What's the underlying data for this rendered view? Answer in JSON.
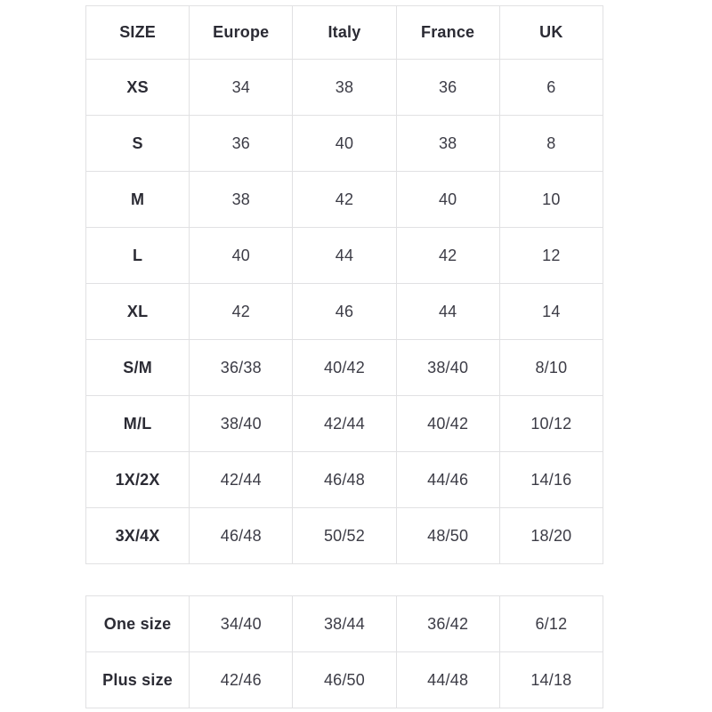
{
  "main_table": {
    "headers": [
      "SIZE",
      "Europe",
      "Italy",
      "France",
      "UK"
    ],
    "rows": [
      [
        "XS",
        "34",
        "38",
        "36",
        "6"
      ],
      [
        "S",
        "36",
        "40",
        "38",
        "8"
      ],
      [
        "M",
        "38",
        "42",
        "40",
        "10"
      ],
      [
        "L",
        "40",
        "44",
        "42",
        "12"
      ],
      [
        "XL",
        "42",
        "46",
        "44",
        "14"
      ],
      [
        "S/M",
        "36/38",
        "40/42",
        "38/40",
        "8/10"
      ],
      [
        "M/L",
        "38/40",
        "42/44",
        "40/42",
        "10/12"
      ],
      [
        "1X/2X",
        "42/44",
        "46/48",
        "44/46",
        "14/16"
      ],
      [
        "3X/4X",
        "46/48",
        "50/52",
        "48/50",
        "18/20"
      ]
    ]
  },
  "special_table": {
    "rows": [
      [
        "One size",
        "34/40",
        "38/44",
        "36/42",
        "6/12"
      ],
      [
        "Plus size",
        "42/46",
        "46/50",
        "44/48",
        "14/18"
      ]
    ]
  },
  "colors": {
    "text_primary": "#2b2b34",
    "text_secondary": "#3c3c46",
    "border": "#e1e1e3",
    "background": "#ffffff"
  }
}
